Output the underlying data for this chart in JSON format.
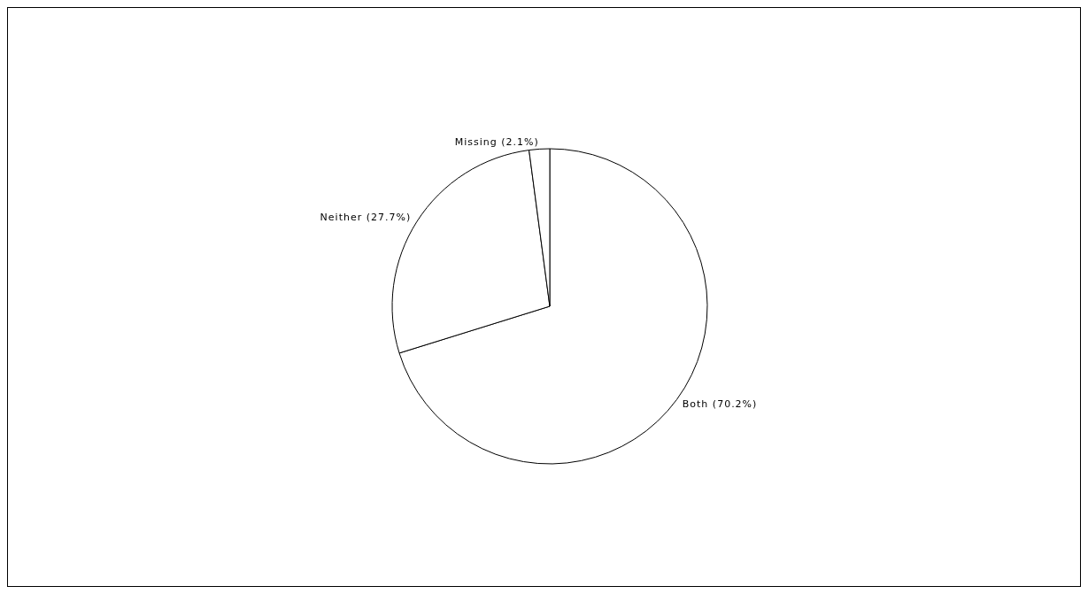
{
  "chart_data": {
    "type": "pie",
    "categories": [
      "Both",
      "Neither",
      "Missing"
    ],
    "values": [
      70.2,
      27.7,
      2.1
    ],
    "colors": [
      "#ffffff",
      "#ffffff",
      "#ffffff"
    ],
    "value_labels": [
      "(70.2%)",
      "(27.7%)",
      "(2.1%)"
    ],
    "legend": false
  }
}
